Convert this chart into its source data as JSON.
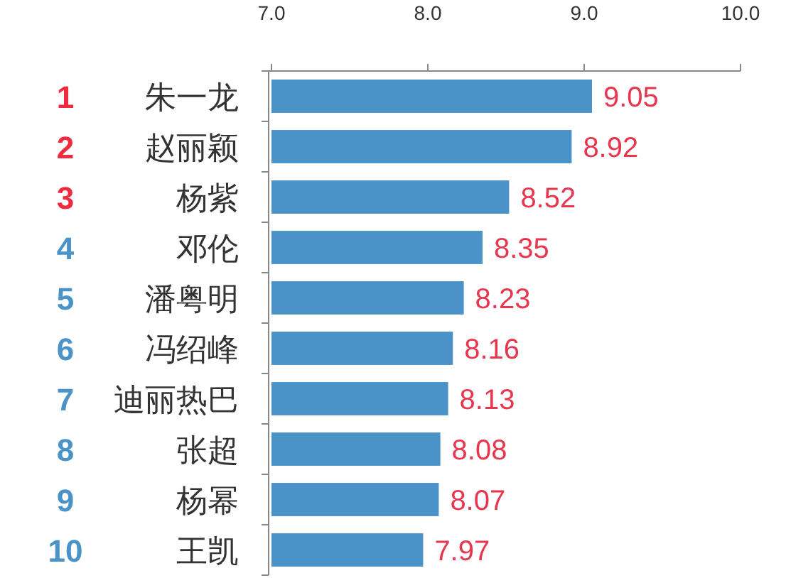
{
  "chart_data": {
    "type": "bar",
    "orientation": "horizontal",
    "categories": [
      "1 朱一龙",
      "2 赵丽颖",
      "3 杨紫",
      "4 邓伦",
      "5 潘粤明",
      "6 冯绍峰",
      "7 迪丽热巴",
      "8 张超",
      "9 杨幂",
      "10 王凯"
    ],
    "values": [
      9.05,
      8.92,
      8.52,
      8.35,
      8.23,
      8.16,
      8.13,
      8.08,
      8.07,
      7.97
    ],
    "color": "#4b92c8",
    "xlim": [
      7,
      10
    ],
    "xticks": [
      {
        "value": 7,
        "label": "7.0"
      },
      {
        "value": 8,
        "label": "8.0"
      },
      {
        "value": 9,
        "label": "9.0"
      },
      {
        "value": 10,
        "label": "10.0"
      }
    ],
    "data_labels": true
  }
}
